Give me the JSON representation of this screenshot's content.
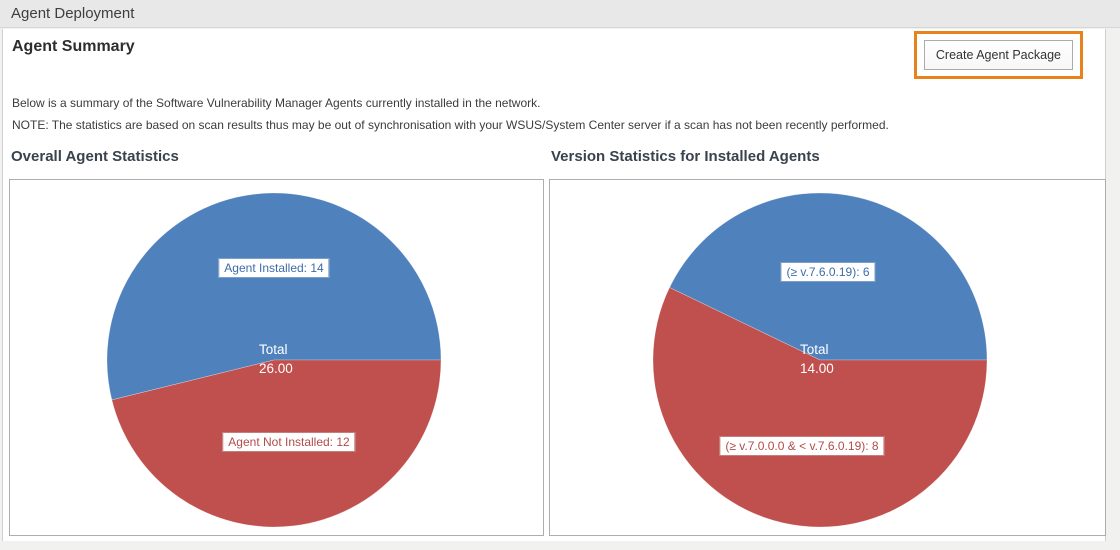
{
  "topbar": {
    "title": "Agent Deployment"
  },
  "page": {
    "title": "Agent Summary",
    "description": "Below is a summary of the Software Vulnerability Manager Agents currently installed in the network.",
    "note": "NOTE: The statistics are based on scan results thus may be out of synchronisation with your WSUS/System Center server if a scan has not been recently performed."
  },
  "toolbar": {
    "create_agent_package_label": "Create Agent Package"
  },
  "annotation": {
    "highlight_color": "#e8821d"
  },
  "chart_data": [
    {
      "type": "pie",
      "title": "Overall Agent Statistics",
      "total_label": "Total",
      "total_value": "26.00",
      "total": 26,
      "legend_position": "none",
      "slices": [
        {
          "name": "Agent Installed",
          "label": "Agent Installed: 14",
          "value": 14,
          "color": "#4f81bd",
          "label_color": "#3e6ca8",
          "border_color": "#7da0c9"
        },
        {
          "name": "Agent Not Installed",
          "label": "Agent Not Installed: 12",
          "value": 12,
          "color": "#c0504d",
          "label_color": "#b14c49",
          "border_color": "#c47f7d"
        }
      ]
    },
    {
      "type": "pie",
      "title": "Version Statistics for Installed Agents",
      "total_label": "Total",
      "total_value": "14.00",
      "total": 14,
      "legend_position": "none",
      "slices": [
        {
          "name": "At or above v.7.6.0.19",
          "label": "(≥ v.7.6.0.19): 6",
          "value": 6,
          "color": "#4f81bd",
          "label_color": "#3e6ca8",
          "border_color": "#7da0c9"
        },
        {
          "name": "Between v.7.0.0.0 and v.7.6.0.19",
          "label": "(≥ v.7.0.0.0 & < v.7.6.0.19): 8",
          "value": 8,
          "color": "#c0504d",
          "label_color": "#b14c49",
          "border_color": "#c47f7d"
        }
      ]
    }
  ]
}
